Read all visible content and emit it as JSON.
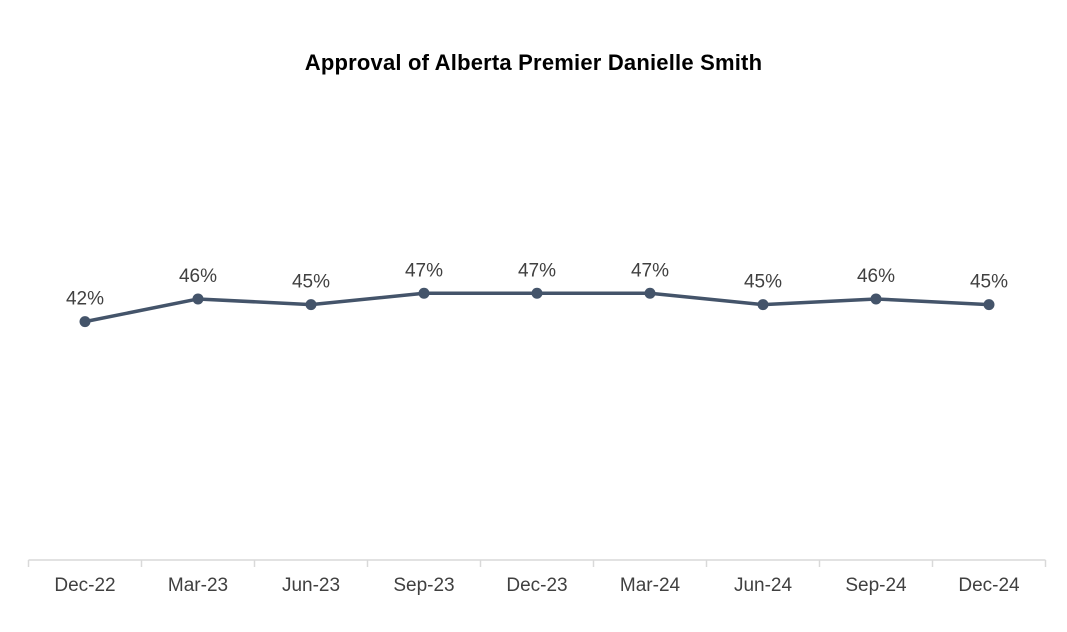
{
  "chart_data": {
    "type": "line",
    "title": "Approval of Alberta Premier Danielle Smith",
    "categories": [
      "Dec-22",
      "Mar-23",
      "Jun-23",
      "Sep-23",
      "Dec-23",
      "Mar-24",
      "Jun-24",
      "Sep-24",
      "Dec-24"
    ],
    "series": [
      {
        "name": "Approval",
        "values": [
          42,
          46,
          45,
          47,
          47,
          47,
          45,
          46,
          45
        ]
      }
    ],
    "data_labels": [
      "42%",
      "46%",
      "45%",
      "47%",
      "47%",
      "47%",
      "45%",
      "46%",
      "45%"
    ],
    "xlabel": "",
    "ylabel": "",
    "ylim": [
      0,
      80
    ],
    "grid": false,
    "legend": "none",
    "y_axis_visible": false,
    "colors": {
      "line": "#44546A",
      "marker": "#44546A",
      "data_label": "#404040",
      "x_label": "#404040",
      "axis_line": "#D9D9D9",
      "tick": "#D9D9D9",
      "title": "#000000",
      "background": "#FFFFFF"
    }
  }
}
